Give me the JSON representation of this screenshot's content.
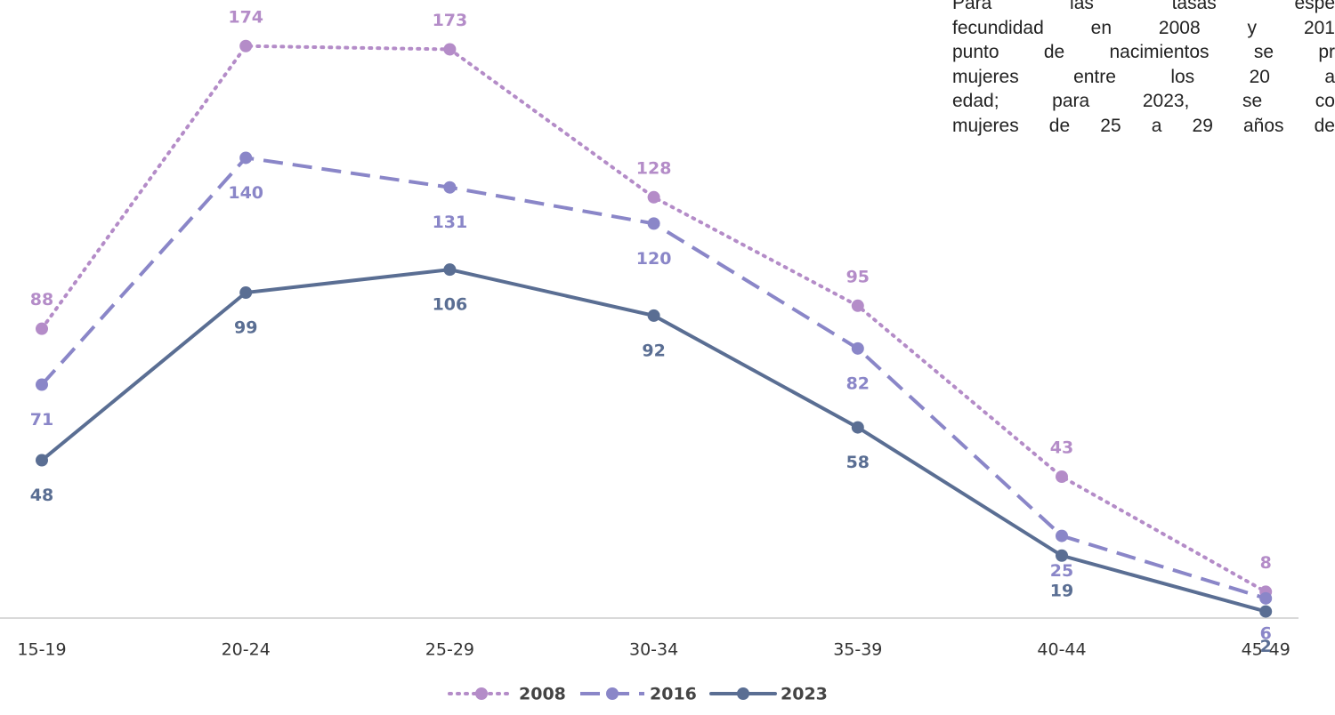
{
  "chart_data": {
    "type": "line",
    "categories": [
      "15-19",
      "20-24",
      "25-29",
      "30-34",
      "35-39",
      "40-44",
      "45-49"
    ],
    "series": [
      {
        "name": "2008",
        "color": "#b48cc8",
        "dash": "dotted",
        "values": [
          88,
          174,
          173,
          128,
          95,
          43,
          8
        ]
      },
      {
        "name": "2016",
        "color": "#8a86c8",
        "dash": "dashed",
        "values": [
          71,
          140,
          131,
          120,
          82,
          25,
          6
        ]
      },
      {
        "name": "2023",
        "color": "#5a6e93",
        "dash": "solid",
        "values": [
          48,
          99,
          106,
          92,
          58,
          19,
          2
        ]
      }
    ],
    "ylim": [
      0,
      188
    ],
    "annotation": [
      "Para las tasas espe",
      "fecundidad en 2008 y 201",
      "punto de nacimientos se pr",
      "mujeres entre los 20 a",
      "edad; para 2023, se co",
      "mujeres de 25 a 29 años de"
    ]
  }
}
